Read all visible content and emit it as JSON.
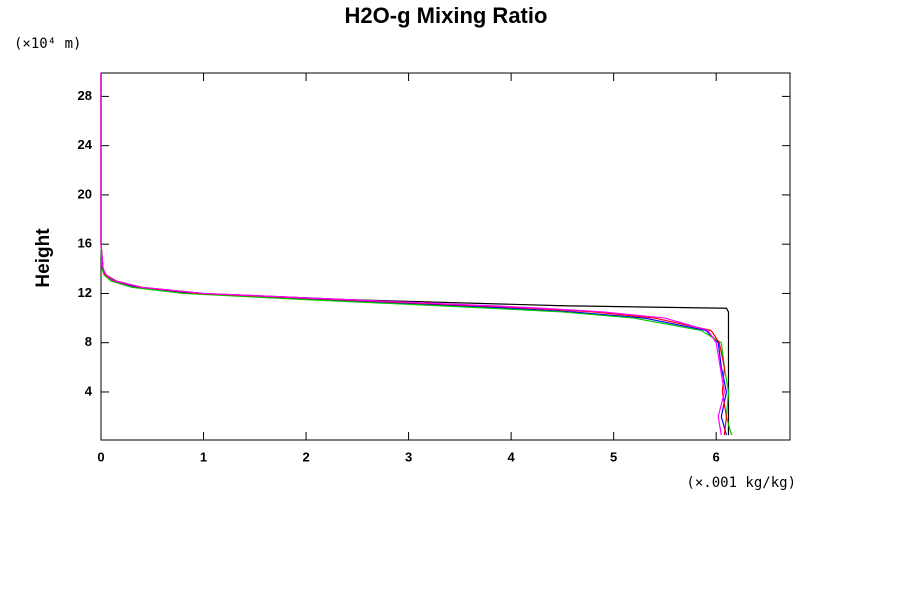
{
  "chart_data": {
    "type": "profile",
    "title": "H2O-g Mixing Ratio",
    "ylabel": "Height",
    "yunit": "(×10⁴ m)",
    "xunit": "(×.001 kg/kg)",
    "xlim": [
      0,
      6.72
    ],
    "ylim": [
      0.1,
      29.9
    ],
    "xticks": [
      0,
      1,
      2,
      3,
      4,
      5,
      6
    ],
    "yticks": [
      4,
      8,
      12,
      16,
      20,
      24,
      28
    ],
    "y": [
      0.5,
      2,
      4,
      6,
      8,
      9,
      10,
      10.5,
      10.8,
      11,
      11.5,
      12,
      12.5,
      13,
      13.5,
      14,
      16,
      20,
      29.9
    ],
    "series": [
      {
        "color": "#000000",
        "values": [
          6.12,
          6.12,
          6.12,
          6.12,
          6.12,
          6.12,
          6.12,
          6.12,
          6.1,
          4.5,
          2.4,
          1.0,
          0.4,
          0.15,
          0.05,
          0.02,
          0,
          0,
          0
        ]
      },
      {
        "color": "#0000ff",
        "values": [
          6.1,
          6.05,
          6.1,
          6.05,
          6.02,
          5.9,
          5.3,
          4.6,
          4.0,
          3.5,
          2.1,
          0.9,
          0.35,
          0.12,
          0.04,
          0.02,
          0,
          0,
          0
        ]
      },
      {
        "color": "#00cc00",
        "values": [
          6.15,
          6.1,
          6.12,
          6.08,
          6.05,
          5.85,
          5.2,
          4.5,
          3.8,
          3.3,
          2.0,
          0.8,
          0.3,
          0.1,
          0.03,
          0.01,
          0,
          0,
          0
        ]
      },
      {
        "color": "#ff0000",
        "values": [
          6.08,
          6.1,
          6.06,
          6.08,
          6.03,
          5.95,
          5.4,
          4.8,
          4.2,
          3.7,
          2.3,
          0.95,
          0.38,
          0.13,
          0.04,
          0.02,
          0,
          0,
          0
        ]
      },
      {
        "color": "#ff00ff",
        "values": [
          6.05,
          6.02,
          6.08,
          6.04,
          6.0,
          5.92,
          5.5,
          4.9,
          4.3,
          3.8,
          2.4,
          1.0,
          0.4,
          0.14,
          0.05,
          0.02,
          0,
          0,
          0
        ]
      }
    ]
  }
}
